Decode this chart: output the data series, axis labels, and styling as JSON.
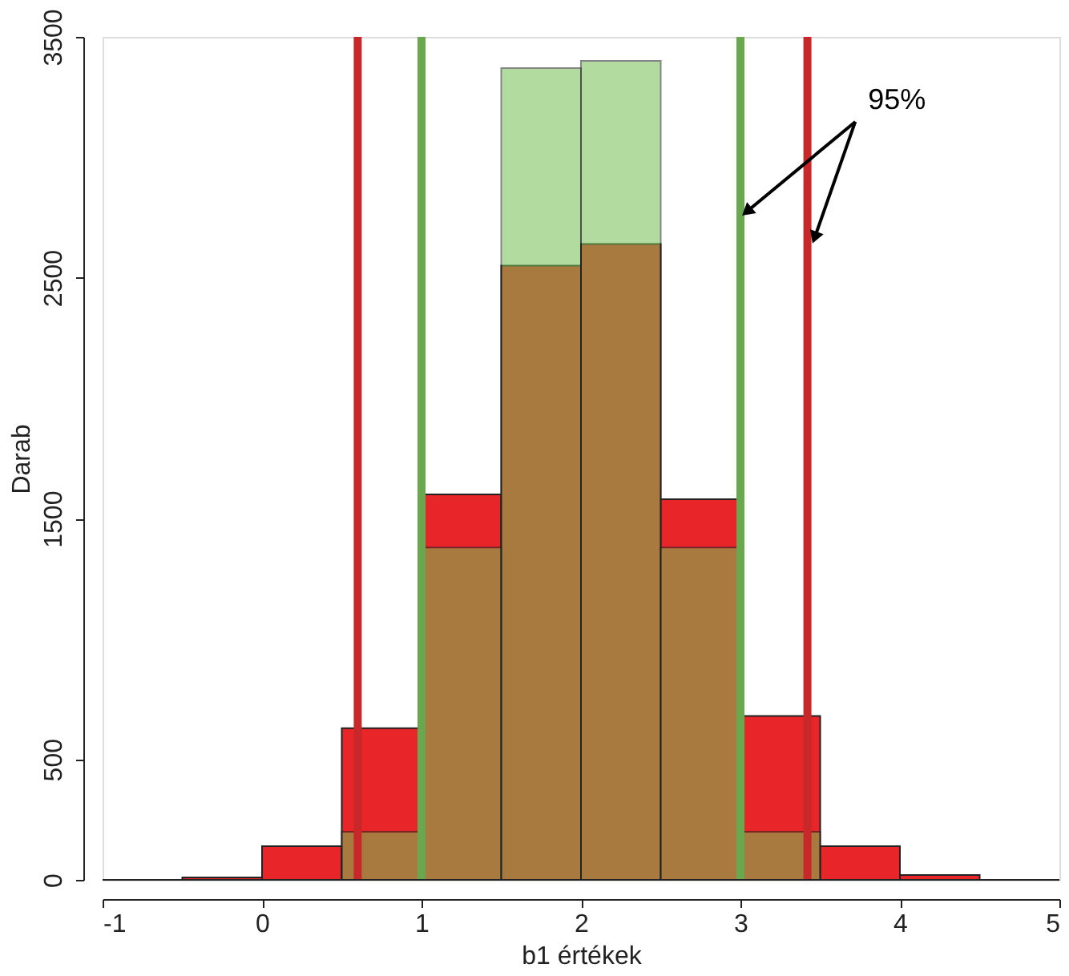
{
  "chart_data": {
    "type": "histogram",
    "xlabel": "b1 értékek",
    "ylabel": "Darab",
    "bins": [
      -0.5,
      0,
      0.5,
      1,
      1.5,
      2,
      2.5,
      3,
      3.5,
      4,
      4.5
    ],
    "series": [
      {
        "color": "#e8262a",
        "values": [
          10,
          140,
          630,
          1600,
          2550,
          2640,
          1580,
          680,
          140,
          20
        ]
      },
      {
        "color": "#74bf52",
        "values": [
          null,
          null,
          200,
          1380,
          3370,
          3400,
          1380,
          200,
          null,
          null
        ]
      }
    ],
    "xlim": [
      -1,
      5
    ],
    "xticks": [
      -1,
      0,
      1,
      2,
      3,
      4,
      5
    ],
    "ylim": [
      0,
      3500
    ],
    "yticks": [
      0,
      500,
      1500,
      2500,
      3500
    ],
    "grid": false,
    "ref_lines": [
      {
        "axis": "x",
        "value": 0.6,
        "color": "#c8282a"
      },
      {
        "axis": "x",
        "value": 1,
        "color": "#6aa84f"
      },
      {
        "axis": "x",
        "value": 3,
        "color": "#6aa84f"
      },
      {
        "axis": "x",
        "value": 3.42,
        "color": "#c8282a"
      }
    ],
    "annotations": [
      {
        "text": "95%",
        "x": 3,
        "y": 2780
      }
    ]
  }
}
